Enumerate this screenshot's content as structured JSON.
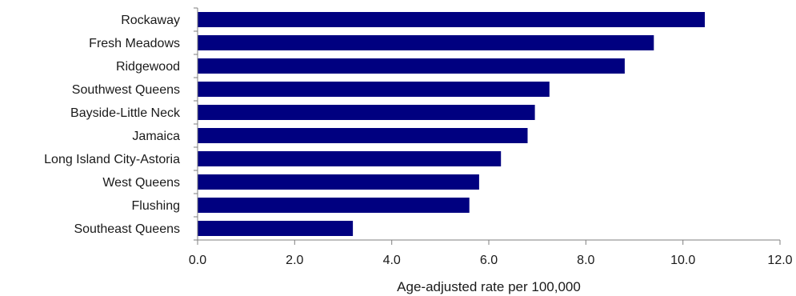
{
  "chart_data": {
    "type": "bar",
    "orientation": "horizontal",
    "categories": [
      "Rockaway",
      "Fresh Meadows",
      "Ridgewood",
      "Southwest Queens",
      "Bayside-Little Neck",
      "Jamaica",
      "Long Island City-Astoria",
      "West Queens",
      "Flushing",
      "Southeast Queens"
    ],
    "values": [
      10.45,
      9.4,
      8.8,
      7.25,
      6.95,
      6.8,
      6.25,
      5.8,
      5.6,
      3.2
    ],
    "xlabel": "Age-adjusted rate per 100,000",
    "ylabel": "",
    "xlim": [
      0,
      12
    ],
    "xticks": [
      "0.0",
      "2.0",
      "4.0",
      "6.0",
      "8.0",
      "10.0",
      "12.0"
    ],
    "grid": false,
    "bar_color": "#000080"
  }
}
